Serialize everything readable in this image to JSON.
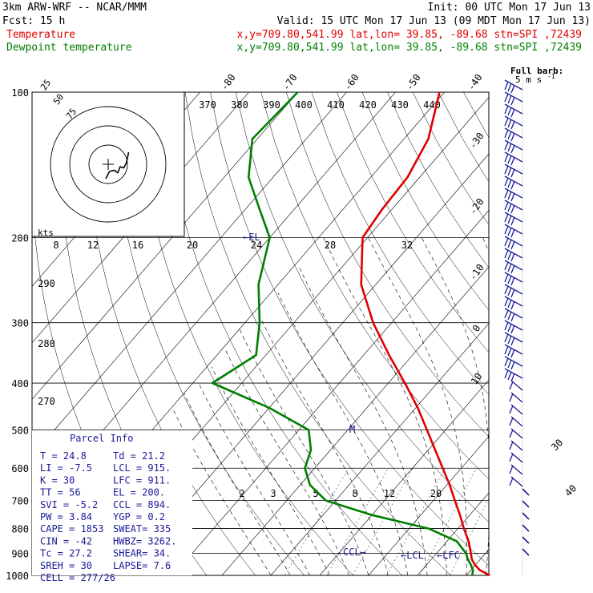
{
  "header": {
    "model": "3km ARW-WRF -- NCAR/MMM",
    "init": "Init: 00 UTC Mon 17 Jun 13",
    "fcst": "Fcst:   15 h",
    "valid": "Valid: 15 UTC Mon 17 Jun 13 (09 MDT Mon 17 Jun 13)",
    "temp_label": "Temperature",
    "dew_label": "Dewpoint temperature",
    "temp_info": "x,y=709.80,541.99   lat,lon= 39.85, -89.68  stn=SPI ,72439",
    "dew_info": "x,y=709.80,541.99   lat,lon= 39.85, -89.68  stn=SPI ,72439"
  },
  "full_barb": {
    "line1": "Full barb:",
    "line2": "5 m s",
    "sup": "-1"
  },
  "hodograph": {
    "units": "kts",
    "ring_labels": [
      "75",
      "50",
      "25"
    ]
  },
  "parcel_info": {
    "title": "Parcel Info",
    "rows": [
      {
        "a": "T   =    24.8",
        "b": "Td  =  21.2"
      },
      {
        "a": "LI  =    -7.5",
        "b": "LCL =  915."
      },
      {
        "a": "K   =      30",
        "b": "LFC =  911."
      },
      {
        "a": "TT  =      56",
        "b": "EL  =  200."
      },
      {
        "a": "SVI =    -5.2",
        "b": "CCL =  894."
      },
      {
        "a": "PW  =    3.84",
        "b": "YGP =   0.2"
      },
      {
        "a": "CAPE =   1853",
        "b": "SWEAT=  335"
      },
      {
        "a": "CIN  =    -42",
        "b": "HWBZ= 3262."
      },
      {
        "a": "Tc  =    27.2",
        "b": "SHEAR=  34."
      },
      {
        "a": "SREH =     30",
        "b": "LAPSE=  7.6"
      },
      {
        "a": "CELL = 277/26",
        "b": ""
      }
    ]
  },
  "annotations": {
    "el": "EL",
    "m": "M",
    "ccl": "CCL",
    "lcl": "LCL",
    "lfc": "LFC"
  },
  "colors": {
    "temperature": "#e00000",
    "dewpoint": "#007f00",
    "hodo": "#000000",
    "annot": "#1a1a99"
  },
  "chart_data": {
    "type": "line",
    "title": "",
    "pressure_levels": [
      100,
      200,
      300,
      400,
      500,
      600,
      700,
      800,
      900,
      1000
    ],
    "pressure_labels": [
      "100",
      "200",
      "300",
      "400",
      "500",
      "600",
      "700",
      "800",
      "900",
      "1000"
    ],
    "isotherm_labels": [
      "-80",
      "-70",
      "-60",
      "-50",
      "-40",
      "-30",
      "-20",
      "-10",
      "0",
      "10",
      "30",
      "40"
    ],
    "theta_e_labels": [
      "370",
      "380",
      "390",
      "400",
      "410",
      "420",
      "430",
      "440"
    ],
    "theta_labels": [
      "290",
      "280",
      "270"
    ],
    "mixing_ratio_labels": [
      "2",
      "3",
      "5",
      "8",
      "12",
      "20"
    ],
    "hodo_axis_labels": [
      "8",
      "12",
      "16",
      "20",
      "24",
      "28",
      "32"
    ],
    "series": [
      {
        "name": "Temperature",
        "p": [
          1000,
          975,
          950,
          925,
          900,
          850,
          800,
          750,
          700,
          650,
          600,
          550,
          500,
          450,
          400,
          350,
          300,
          250,
          200,
          175,
          150,
          125,
          100
        ],
        "t": [
          24.8,
          21.8,
          19.8,
          18.2,
          17.0,
          14.4,
          11.2,
          8.0,
          4.4,
          0.6,
          -3.8,
          -8.6,
          -13.8,
          -19.6,
          -26.6,
          -34.8,
          -43.8,
          -53.0,
          -61.0,
          -62.0,
          -62.5,
          -65.0,
          -71.0
        ]
      },
      {
        "name": "Dewpoint temperature",
        "p": [
          1000,
          975,
          950,
          925,
          900,
          850,
          800,
          750,
          700,
          650,
          600,
          550,
          500,
          450,
          400,
          350,
          300,
          250,
          200,
          175,
          150,
          125,
          100
        ],
        "t": [
          21.2,
          20.4,
          19.0,
          17.4,
          16.0,
          12.0,
          4.0,
          -10.0,
          -22.0,
          -28.0,
          -32.0,
          -34.0,
          -38.0,
          -50.0,
          -66.0,
          -62.0,
          -67.0,
          -74.0,
          -80.0,
          -87.0,
          -95.0,
          -101.0,
          -100.0
        ]
      }
    ],
    "hodograph_uv_kts": [
      [
        -1,
        6
      ],
      [
        0.5,
        3
      ],
      [
        2.5,
        2.5
      ],
      [
        4,
        3.5
      ],
      [
        5,
        1
      ],
      [
        6.5,
        1.5
      ],
      [
        7.5,
        -0.5
      ],
      [
        8,
        -2.5
      ],
      [
        8.5,
        -5
      ]
    ]
  }
}
